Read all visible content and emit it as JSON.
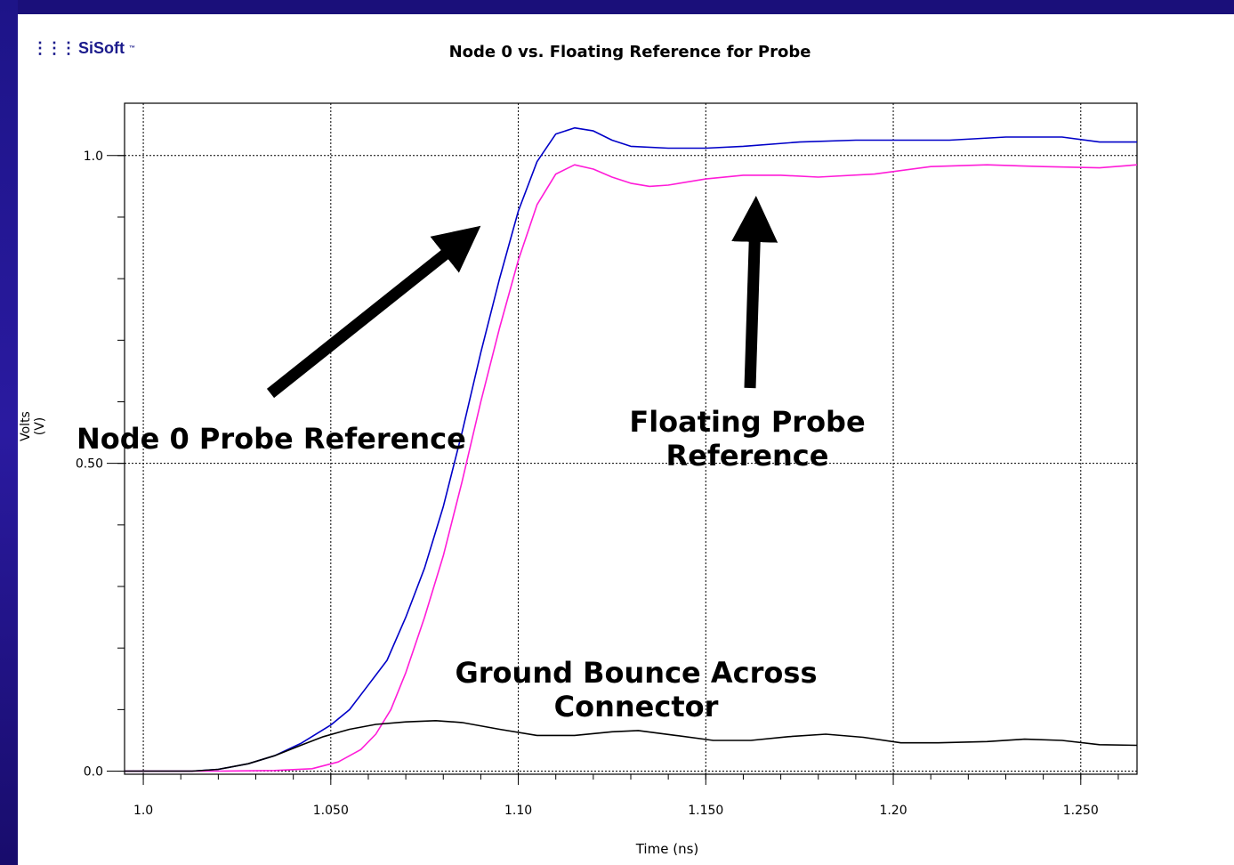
{
  "logo": {
    "mark": "⋮⋮⋮",
    "name": "SiSoft",
    "tm": "™"
  },
  "chart_data": {
    "type": "line",
    "title": "Node 0 vs. Floating Reference for Probe",
    "xlabel": "Time (ns)",
    "ylabel": "Volts (V)",
    "xlim": [
      0.995,
      1.265
    ],
    "ylim": [
      -0.005,
      1.085
    ],
    "x_ticks": [
      1.0,
      1.05,
      1.1,
      1.15,
      1.2,
      1.25
    ],
    "x_tick_labels": [
      "1.0",
      "1.050",
      "1.10",
      "1.150",
      "1.20",
      "1.250"
    ],
    "y_ticks": [
      0.0,
      0.5,
      1.0
    ],
    "y_tick_labels": [
      "0.0",
      "0.50",
      "1.0"
    ],
    "grid": true,
    "series": [
      {
        "color": "#0000c8",
        "points": [
          [
            0.995,
            0.0
          ],
          [
            1.005,
            0.0
          ],
          [
            1.013,
            0.0
          ],
          [
            1.02,
            0.003
          ],
          [
            1.028,
            0.012
          ],
          [
            1.035,
            0.025
          ],
          [
            1.042,
            0.045
          ],
          [
            1.05,
            0.075
          ],
          [
            1.055,
            0.1
          ],
          [
            1.06,
            0.14
          ],
          [
            1.065,
            0.18
          ],
          [
            1.07,
            0.25
          ],
          [
            1.075,
            0.33
          ],
          [
            1.08,
            0.43
          ],
          [
            1.085,
            0.55
          ],
          [
            1.09,
            0.68
          ],
          [
            1.095,
            0.8
          ],
          [
            1.1,
            0.91
          ],
          [
            1.105,
            0.99
          ],
          [
            1.11,
            1.035
          ],
          [
            1.115,
            1.045
          ],
          [
            1.12,
            1.04
          ],
          [
            1.125,
            1.025
          ],
          [
            1.13,
            1.015
          ],
          [
            1.14,
            1.012
          ],
          [
            1.15,
            1.012
          ],
          [
            1.16,
            1.015
          ],
          [
            1.175,
            1.022
          ],
          [
            1.19,
            1.025
          ],
          [
            1.2,
            1.025
          ],
          [
            1.215,
            1.025
          ],
          [
            1.23,
            1.03
          ],
          [
            1.245,
            1.03
          ],
          [
            1.255,
            1.022
          ],
          [
            1.265,
            1.022
          ]
        ]
      },
      {
        "color": "#ff1cd8",
        "points": [
          [
            0.995,
            0.0
          ],
          [
            1.02,
            0.0
          ],
          [
            1.035,
            0.001
          ],
          [
            1.045,
            0.004
          ],
          [
            1.052,
            0.015
          ],
          [
            1.058,
            0.035
          ],
          [
            1.062,
            0.06
          ],
          [
            1.066,
            0.1
          ],
          [
            1.07,
            0.16
          ],
          [
            1.075,
            0.25
          ],
          [
            1.08,
            0.35
          ],
          [
            1.085,
            0.47
          ],
          [
            1.09,
            0.6
          ],
          [
            1.095,
            0.72
          ],
          [
            1.1,
            0.83
          ],
          [
            1.105,
            0.92
          ],
          [
            1.11,
            0.97
          ],
          [
            1.115,
            0.985
          ],
          [
            1.12,
            0.978
          ],
          [
            1.125,
            0.965
          ],
          [
            1.13,
            0.955
          ],
          [
            1.135,
            0.95
          ],
          [
            1.14,
            0.952
          ],
          [
            1.15,
            0.962
          ],
          [
            1.16,
            0.968
          ],
          [
            1.17,
            0.968
          ],
          [
            1.18,
            0.965
          ],
          [
            1.195,
            0.97
          ],
          [
            1.21,
            0.982
          ],
          [
            1.225,
            0.985
          ],
          [
            1.24,
            0.982
          ],
          [
            1.255,
            0.98
          ],
          [
            1.265,
            0.985
          ]
        ]
      },
      {
        "color": "#000000",
        "points": [
          [
            0.995,
            0.0
          ],
          [
            1.005,
            0.0
          ],
          [
            1.013,
            0.0
          ],
          [
            1.02,
            0.003
          ],
          [
            1.028,
            0.012
          ],
          [
            1.035,
            0.025
          ],
          [
            1.042,
            0.042
          ],
          [
            1.048,
            0.056
          ],
          [
            1.055,
            0.068
          ],
          [
            1.062,
            0.076
          ],
          [
            1.07,
            0.08
          ],
          [
            1.078,
            0.082
          ],
          [
            1.085,
            0.079
          ],
          [
            1.095,
            0.068
          ],
          [
            1.105,
            0.058
          ],
          [
            1.115,
            0.058
          ],
          [
            1.125,
            0.064
          ],
          [
            1.132,
            0.066
          ],
          [
            1.142,
            0.058
          ],
          [
            1.152,
            0.05
          ],
          [
            1.162,
            0.05
          ],
          [
            1.172,
            0.056
          ],
          [
            1.182,
            0.06
          ],
          [
            1.192,
            0.055
          ],
          [
            1.202,
            0.046
          ],
          [
            1.212,
            0.046
          ],
          [
            1.225,
            0.048
          ],
          [
            1.235,
            0.052
          ],
          [
            1.245,
            0.05
          ],
          [
            1.255,
            0.043
          ],
          [
            1.265,
            0.042
          ]
        ]
      }
    ],
    "annotations": {
      "node0": "Node 0 Probe Reference",
      "floating": "Floating Probe Reference",
      "ground": "Ground Bounce Across Connector"
    }
  }
}
